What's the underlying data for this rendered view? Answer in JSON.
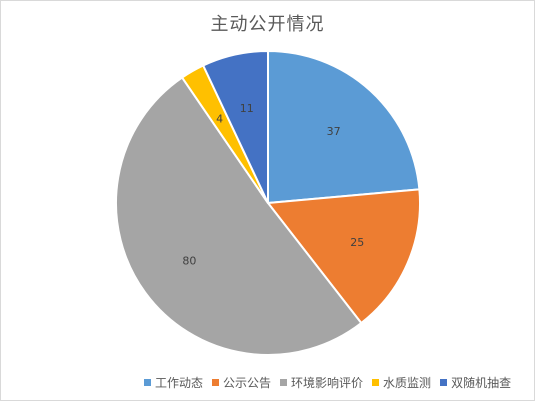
{
  "chart_data": {
    "type": "pie",
    "title": "主动公开情况",
    "categories": [
      "工作动态",
      "公示公告",
      "环境影响评价",
      "水质监测",
      "双随机抽查"
    ],
    "values": [
      37,
      25,
      80,
      4,
      11
    ],
    "colors": [
      "#5b9bd5",
      "#ed7d31",
      "#a5a5a5",
      "#ffc000",
      "#4472c4"
    ],
    "legend_position": "bottom",
    "data_labels": true
  }
}
